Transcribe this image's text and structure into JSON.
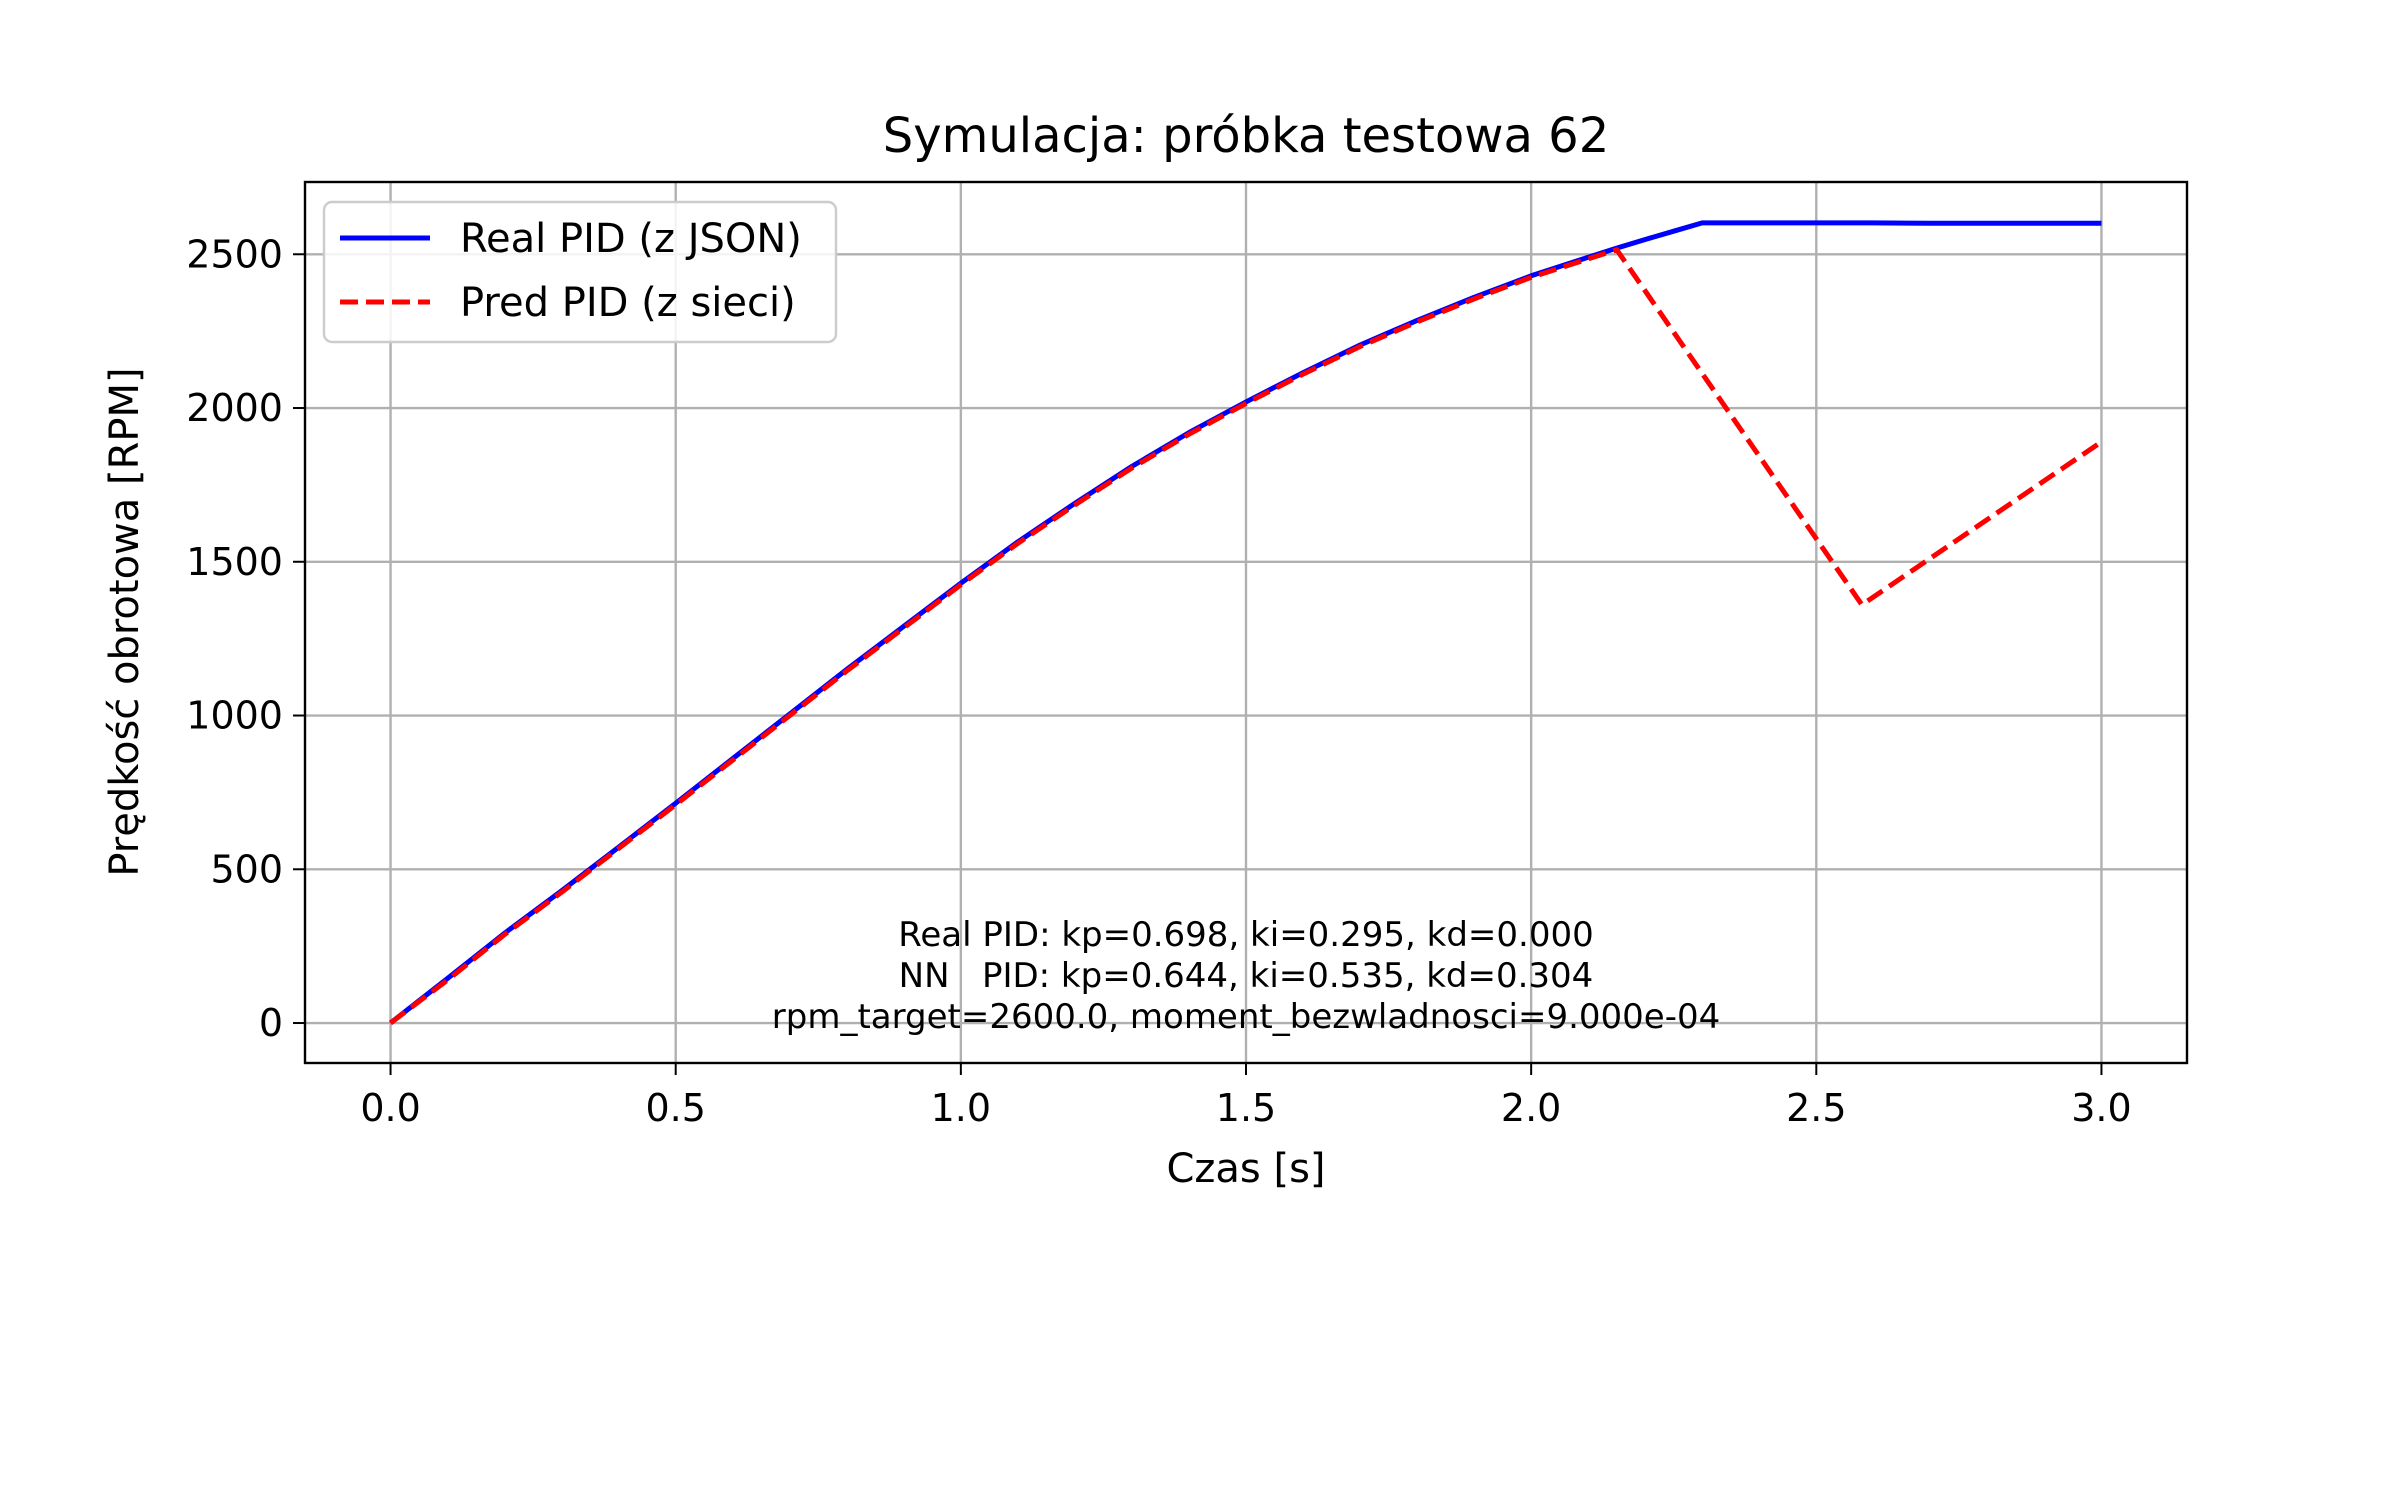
{
  "chart_data": {
    "type": "line",
    "title": "Symulacja: próbka testowa 62",
    "xlabel": "Czas [s]",
    "ylabel": "Prędkość obrotowa [RPM]",
    "xlim": [
      -0.15,
      3.15
    ],
    "ylim": [
      -130,
      2735
    ],
    "xticks": [
      0.0,
      0.5,
      1.0,
      1.5,
      2.0,
      2.5,
      3.0
    ],
    "xtick_labels": [
      "0.0",
      "0.5",
      "1.0",
      "1.5",
      "2.0",
      "2.5",
      "3.0"
    ],
    "yticks": [
      0,
      500,
      1000,
      1500,
      2000,
      2500
    ],
    "ytick_labels": [
      "0",
      "500",
      "1000",
      "1500",
      "2000",
      "2500"
    ],
    "grid": true,
    "legend_position": "top-left",
    "series": [
      {
        "name": "Real PID (z JSON)",
        "color": "#0000ff",
        "style": "solid",
        "x": [
          0.0,
          0.1,
          0.2,
          0.3,
          0.4,
          0.5,
          0.6,
          0.7,
          0.8,
          0.9,
          1.0,
          1.1,
          1.2,
          1.3,
          1.4,
          1.5,
          1.6,
          1.7,
          1.8,
          1.9,
          2.0,
          2.1,
          2.15,
          2.2,
          2.25,
          2.3,
          2.4,
          2.5,
          2.6,
          2.7,
          2.8,
          2.9,
          3.0
        ],
        "y": [
          0,
          145,
          292,
          430,
          572,
          715,
          860,
          1005,
          1150,
          1290,
          1430,
          1565,
          1690,
          1810,
          1920,
          2020,
          2115,
          2205,
          2285,
          2360,
          2430,
          2490,
          2520,
          2548,
          2575,
          2602,
          2602,
          2602,
          2602,
          2601,
          2601,
          2601,
          2601
        ]
      },
      {
        "name": "Pred PID (z sieci)",
        "color": "#ff0000",
        "style": "dashed",
        "x": [
          0.0,
          0.1,
          0.2,
          0.3,
          0.4,
          0.5,
          0.6,
          0.7,
          0.8,
          0.9,
          1.0,
          1.1,
          1.2,
          1.3,
          1.4,
          1.5,
          1.6,
          1.7,
          1.8,
          1.9,
          2.0,
          2.1,
          2.15,
          2.58,
          3.0
        ],
        "y": [
          0,
          140,
          288,
          425,
          568,
          710,
          855,
          1000,
          1145,
          1285,
          1425,
          1560,
          1685,
          1805,
          1915,
          2015,
          2110,
          2200,
          2280,
          2355,
          2425,
          2485,
          2515,
          1360,
          1890
        ]
      }
    ],
    "annotations": [
      "Real PID: kp=0.698, ki=0.295, kd=0.000",
      "NN   PID: kp=0.644, ki=0.535, kd=0.304",
      "rpm_target=2600.0, moment_bezwladnosci=9.000e-04"
    ]
  }
}
